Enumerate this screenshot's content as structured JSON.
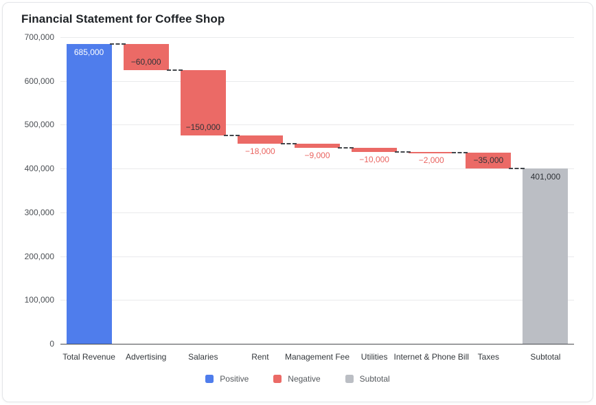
{
  "chart_data": {
    "type": "waterfall",
    "title": "Financial Statement for Coffee Shop",
    "categories": [
      "Total Revenue",
      "Advertising",
      "Salaries",
      "Rent",
      "Management Fee",
      "Utilities",
      "Internet & Phone Bill",
      "Taxes",
      "Subtotal"
    ],
    "values": [
      685000,
      -60000,
      -150000,
      -18000,
      -9000,
      -10000,
      -2000,
      -35000,
      401000
    ],
    "bar_kinds": [
      "positive",
      "negative",
      "negative",
      "negative",
      "negative",
      "negative",
      "negative",
      "negative",
      "subtotal"
    ],
    "bar_labels": [
      "685,000",
      "−60,000",
      "−150,000",
      "−18,000",
      "−9,000",
      "−10,000",
      "−2,000",
      "−35,000",
      "401,000"
    ],
    "running_totals": [
      685000,
      625000,
      475000,
      457000,
      448000,
      438000,
      436000,
      401000,
      401000
    ],
    "ylim": [
      0,
      700000
    ],
    "y_ticks": [
      {
        "value": 0,
        "label": "0"
      },
      {
        "value": 100000,
        "label": "100,000"
      },
      {
        "value": 200000,
        "label": "200,000"
      },
      {
        "value": 300000,
        "label": "300,000"
      },
      {
        "value": 400000,
        "label": "400,000"
      },
      {
        "value": 500000,
        "label": "500,000"
      },
      {
        "value": 600000,
        "label": "600,000"
      },
      {
        "value": 700000,
        "label": "700,000"
      }
    ],
    "grid": true,
    "legend": {
      "position": "bottom",
      "items": [
        {
          "label": "Positive",
          "color": "#4f7dec",
          "role": "positive"
        },
        {
          "label": "Negative",
          "color": "#eb6a66",
          "role": "negative"
        },
        {
          "label": "Subtotal",
          "color": "#bbbec4",
          "role": "subtotal"
        }
      ]
    },
    "colors": {
      "positive": "#4f7dec",
      "negative": "#eb6a66",
      "subtotal": "#bbbec4",
      "label_on_positive": "#ffffff",
      "label_inside_dark": "#2f3338",
      "label_below_negative": "#ea635f",
      "connector": "#41454a",
      "gridline": "#e9eaec",
      "axis_line": "#47494d",
      "tick_text": "#4b4f54",
      "category_text": "#33373b",
      "legend_text": "#54585c",
      "title_text": "#1e2226"
    }
  }
}
